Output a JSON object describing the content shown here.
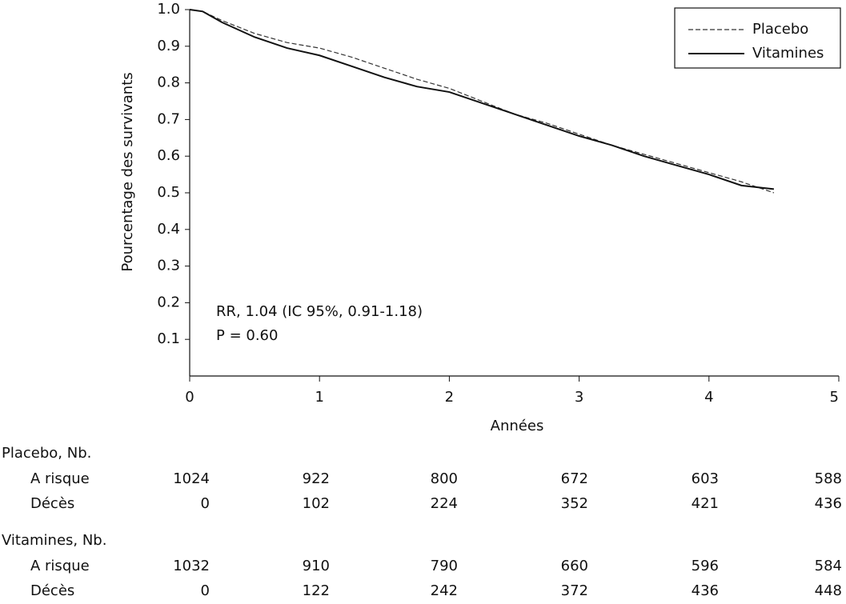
{
  "chart_data": {
    "type": "line",
    "x_label": "Années",
    "y_label": "Pourcentage des survivants",
    "xlim": [
      0,
      5
    ],
    "xticks": [
      0,
      1,
      2,
      3,
      4,
      5
    ],
    "ylim": [
      0,
      1
    ],
    "yticks": [
      0.1,
      0.2,
      0.3,
      0.4,
      0.5,
      0.6,
      0.7,
      0.8,
      0.9,
      {
        "value": 1,
        "label": "1.0"
      }
    ],
    "x": [
      0,
      0.1,
      0.25,
      0.5,
      0.75,
      1,
      1.25,
      1.5,
      1.75,
      2,
      2.25,
      2.5,
      2.75,
      3,
      3.25,
      3.5,
      3.75,
      4,
      4.25,
      4.5
    ],
    "series": [
      {
        "name": "Placebo",
        "color": "#333333",
        "dash": true,
        "values": [
          1,
          0.995,
          0.97,
          0.935,
          0.91,
          0.895,
          0.87,
          0.84,
          0.81,
          0.785,
          0.75,
          0.715,
          0.69,
          0.66,
          0.63,
          0.605,
          0.58,
          0.555,
          0.53,
          0.5
        ]
      },
      {
        "name": "Vitamines",
        "color": "#111111",
        "dash": false,
        "values": [
          1,
          0.995,
          0.965,
          0.925,
          0.895,
          0.875,
          0.845,
          0.815,
          0.79,
          0.775,
          0.745,
          0.715,
          0.685,
          0.655,
          0.63,
          0.6,
          0.575,
          0.55,
          0.52,
          0.51
        ]
      }
    ],
    "legend": "top-right",
    "annotations": [
      "RR, 1.04 (IC 95%, 0.91-1.18)",
      "P = 0.60"
    ],
    "risk_table": [
      {
        "title": "Placebo, Nb.",
        "rows": [
          {
            "label": "A risque",
            "values": [
              1024,
              922,
              800,
              672,
              603,
              588
            ]
          },
          {
            "label": "Décès",
            "values": [
              0,
              102,
              224,
              352,
              421,
              436
            ]
          }
        ]
      },
      {
        "title": "Vitamines, Nb.",
        "rows": [
          {
            "label": "A risque",
            "values": [
              1032,
              910,
              790,
              660,
              596,
              584
            ]
          },
          {
            "label": "Décès",
            "values": [
              0,
              122,
              242,
              372,
              436,
              448
            ]
          }
        ]
      }
    ]
  }
}
